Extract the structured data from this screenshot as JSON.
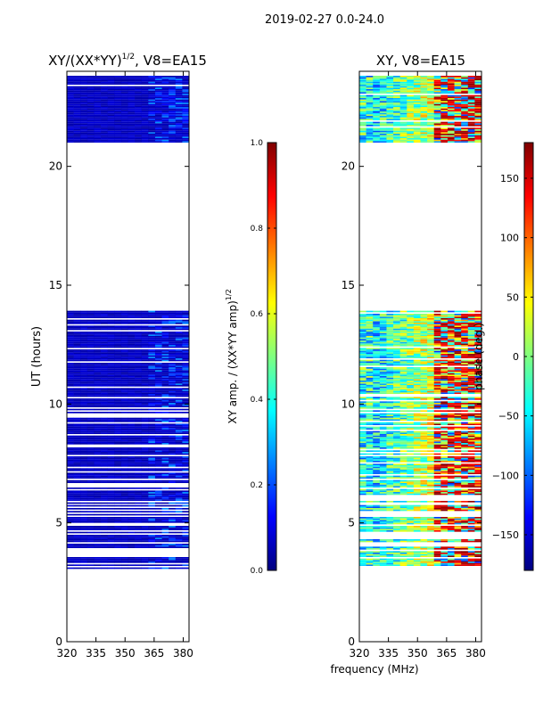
{
  "figure": {
    "suptitle": "2019-02-27 0.0-24.0",
    "xlabel": "frequency (MHz)"
  },
  "chart_data": [
    {
      "type": "heatmap",
      "id": "amplitude",
      "title": "XY/(XX*YY)",
      "title_superscript": "1/2",
      "title_suffix": ", V8=EA15",
      "ylabel": "UT (hours)",
      "xlim": [
        320,
        383
      ],
      "ylim": [
        0,
        24
      ],
      "xticks": [
        320,
        335,
        350,
        365,
        380
      ],
      "yticks": [
        0,
        5,
        10,
        15,
        20
      ],
      "data_blocks_hours": [
        [
          3.0,
          5.8
        ],
        [
          5.8,
          10.3
        ],
        [
          10.3,
          13.9
        ],
        [
          21.0,
          23.8
        ]
      ],
      "colormap": "jet",
      "colorbar": {
        "label": "XY amp. / (XX*YY amp)",
        "label_superscript": "1/2",
        "range": [
          0.0,
          1.0
        ],
        "ticks": [
          "0.0",
          "0.2",
          "0.4",
          "0.6",
          "0.8",
          "1.0"
        ]
      }
    },
    {
      "type": "heatmap",
      "id": "phase",
      "title": "XY, V8=EA15",
      "xlim": [
        320,
        383
      ],
      "ylim": [
        0,
        24
      ],
      "xticks": [
        320,
        335,
        350,
        365,
        380
      ],
      "yticks": [
        0,
        5,
        10,
        15,
        20
      ],
      "data_blocks_hours": [
        [
          3.0,
          5.8
        ],
        [
          5.8,
          10.3
        ],
        [
          10.3,
          13.9
        ],
        [
          21.0,
          23.8
        ]
      ],
      "colormap": "jet",
      "colorbar": {
        "label": "phase (deg.)",
        "range": [
          -180,
          180
        ],
        "ticks": [
          "−150",
          "−100",
          "−50",
          "0",
          "50",
          "100",
          "150"
        ],
        "tick_values": [
          -150,
          -100,
          -50,
          0,
          50,
          100,
          150
        ]
      }
    }
  ],
  "colors": {
    "jet": [
      "#00007f",
      "#0000ff",
      "#007fff",
      "#00ffff",
      "#7fff7f",
      "#ffff00",
      "#ff7f00",
      "#ff0000",
      "#7f0000"
    ]
  }
}
